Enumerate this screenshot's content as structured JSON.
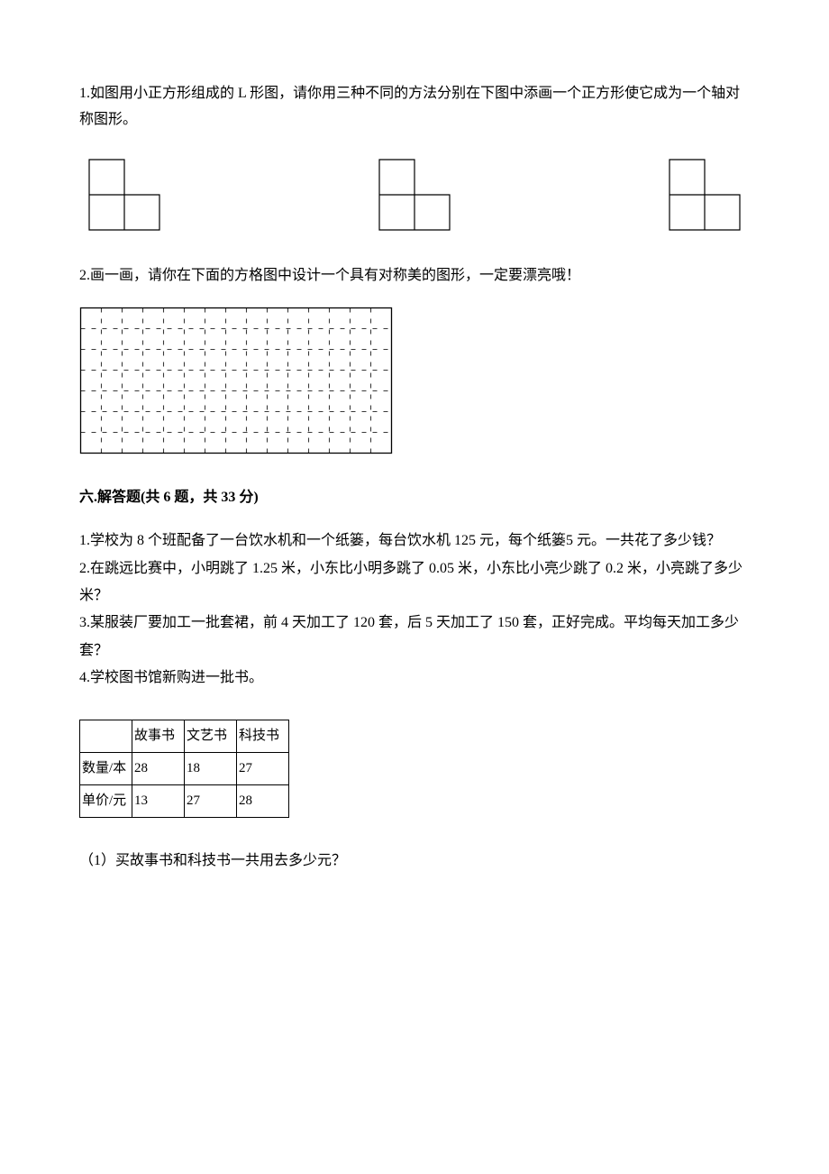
{
  "q1": {
    "text": "1.如图用小正方形组成的 L 形图，请你用三种不同的方法分别在下图中添画一个正方形使它成为一个轴对称图形。",
    "shapes": {
      "count": 3,
      "cell": 39,
      "stroke": "#000000",
      "strokeWidth": 1.2
    }
  },
  "q2": {
    "text": "2.画一画，请你在下面的方格图中设计一个具有对称美的图形，一定要漂亮哦！",
    "grid": {
      "cols": 15,
      "rows": 7,
      "cell": 23,
      "outerStroke": "#000000",
      "outerStrokeWidth": 1.3,
      "dashColor": "#3a3a3a",
      "dashWidth": 1.1,
      "dashPattern": "5,7"
    }
  },
  "section6": {
    "heading": "六.解答题(共 6 题，共 33 分)",
    "p1": "1.学校为 8 个班配备了一台饮水机和一个纸篓，每台饮水机 125 元，每个纸篓5 元。一共花了多少钱？",
    "p2": "2.在跳远比赛中，小明跳了 1.25 米，小东比小明多跳了 0.05 米，小东比小亮少跳了 0.2 米，小亮跳了多少米？",
    "p3": "3.某服装厂要加工一批套裙，前 4 天加工了 120 套，后 5 天加工了 150 套，正好完成。平均每天加工多少套？",
    "p4": "4.学校图书馆新购进一批书。",
    "table": {
      "cornerLabel": "",
      "headers": [
        "故事书",
        "文艺书",
        "科技书"
      ],
      "rowLabels": [
        "数量/本",
        "单价/元"
      ],
      "rows": [
        [
          "28",
          "18",
          "27"
        ],
        [
          "13",
          "27",
          "28"
        ]
      ]
    },
    "sub1": "（1）买故事书和科技书一共用去多少元？"
  }
}
